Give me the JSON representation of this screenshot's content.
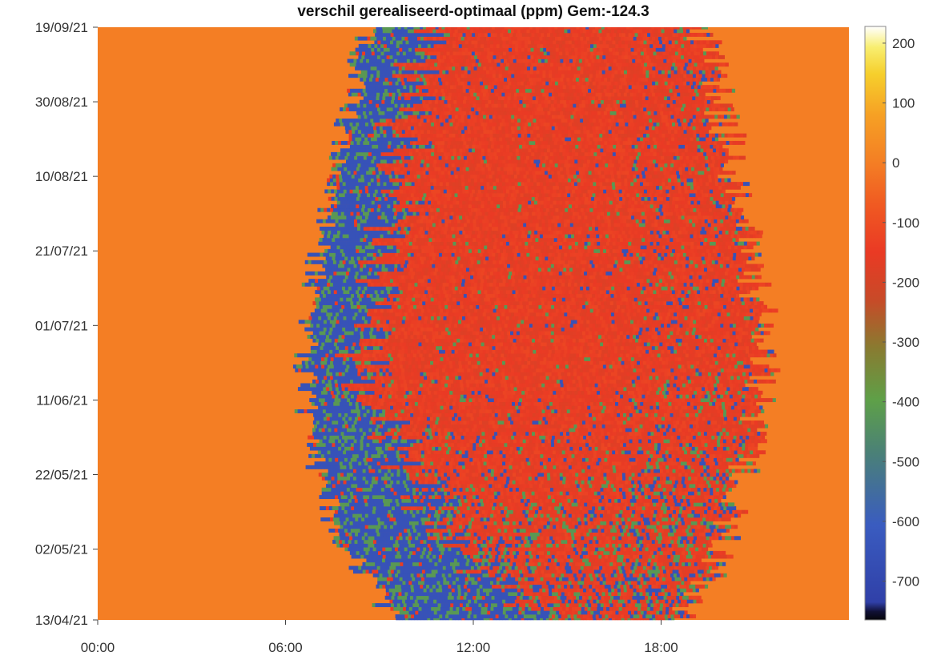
{
  "chart_data": {
    "type": "heatmap",
    "title": "verschil gerealiseerd-optimaal (ppm) Gem:-124.3",
    "xlabel": "",
    "ylabel": "",
    "x_tick_labels": [
      "00:00",
      "06:00",
      "12:00",
      "18:00"
    ],
    "x_tick_hours": [
      0,
      6,
      12,
      18
    ],
    "xlim_hours": [
      0,
      24
    ],
    "y_tick_labels": [
      "13/04/21",
      "02/05/21",
      "22/05/21",
      "11/06/21",
      "01/07/21",
      "21/07/21",
      "10/08/21",
      "30/08/21",
      "19/09/21"
    ],
    "y_tick_days": [
      0,
      19,
      39,
      59,
      79,
      99,
      119,
      139,
      159
    ],
    "ylim_days": [
      0,
      159
    ],
    "colorbar": {
      "ticks": [
        200,
        100,
        0,
        -100,
        -200,
        -300,
        -400,
        -500,
        -600,
        -700
      ],
      "range": [
        -765,
        228
      ]
    },
    "value_zones": {
      "outside_daylight": 0,
      "daytime_typical": -150,
      "early_morning_and_spring": -650,
      "transition_band": -420
    },
    "daylight_window_hours": [
      {
        "day": 0,
        "start": 9.4,
        "end": 18.6
      },
      {
        "day": 10,
        "start": 8.8,
        "end": 19.4
      },
      {
        "day": 20,
        "start": 7.8,
        "end": 19.9
      },
      {
        "day": 40,
        "start": 7.0,
        "end": 20.6
      },
      {
        "day": 60,
        "start": 6.6,
        "end": 21.2
      },
      {
        "day": 80,
        "start": 6.7,
        "end": 21.1
      },
      {
        "day": 100,
        "start": 7.1,
        "end": 20.8
      },
      {
        "day": 120,
        "start": 7.6,
        "end": 20.3
      },
      {
        "day": 140,
        "start": 8.1,
        "end": 19.8
      },
      {
        "day": 159,
        "start": 8.6,
        "end": 19.2
      }
    ],
    "grid": false,
    "colormap": "parula-like (dark blue → green → red → orange → yellow → white)"
  }
}
